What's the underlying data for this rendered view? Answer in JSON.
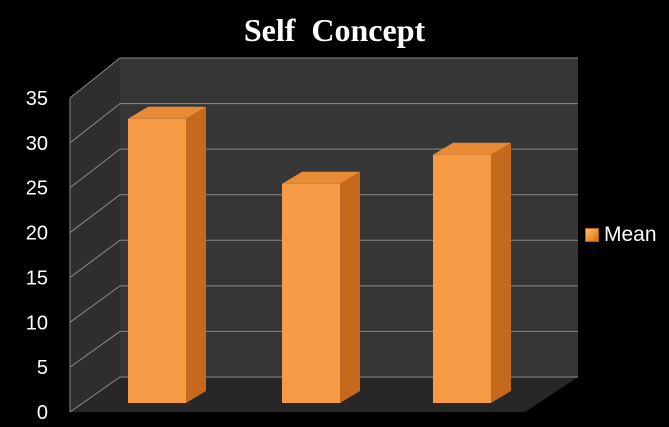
{
  "chart_data": {
    "type": "bar",
    "title": "Self  Concept",
    "categories": [
      "",
      "",
      ""
    ],
    "series": [
      {
        "name": "Mean",
        "values": [
          32.4,
          25.0,
          28.3
        ]
      }
    ],
    "ylim": [
      0,
      35
    ],
    "yticks": [
      "0",
      "5",
      "10",
      "15",
      "20",
      "25",
      "30",
      "35"
    ],
    "grid": true,
    "legend_position": "right",
    "colors": {
      "bar_front": "#f79a45",
      "bar_side": "#c56a1d",
      "bar_top": "#e98a36",
      "wall": "#363636",
      "floor": "#272727",
      "gridline": "#8a8a8a",
      "text": "#ffffff"
    }
  }
}
